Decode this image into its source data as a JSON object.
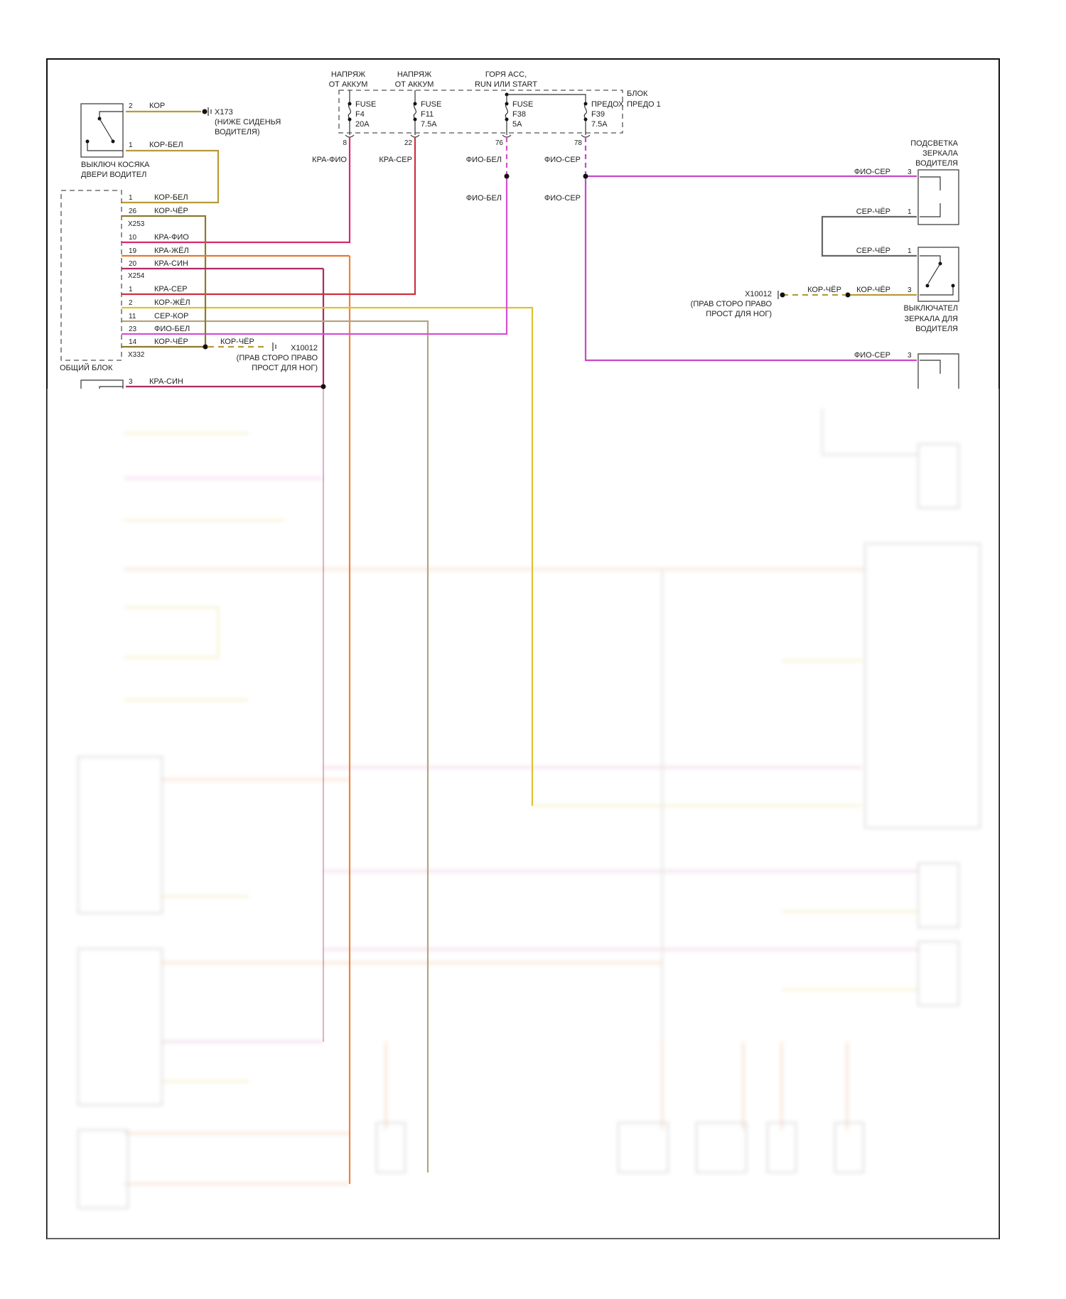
{
  "power_sources": [
    {
      "line1": "НАПРЯЖ",
      "line2": "ОТ АККУМ"
    },
    {
      "line1": "НАПРЯЖ",
      "line2": "ОТ АККУМ"
    },
    {
      "line1": "ГОРЯ ACC,",
      "line2": "RUN ИЛИ START"
    }
  ],
  "fuse_block": {
    "line1": "БЛОК",
    "line2": "ПРЕДО 1"
  },
  "fuses": [
    {
      "name": "FUSE",
      "id": "F4",
      "rating": "20A",
      "pin": "8",
      "wire": "КРА-ФИО"
    },
    {
      "name": "FUSE",
      "id": "F11",
      "rating": "7.5A",
      "pin": "22",
      "wire": "КРА-СЕР"
    },
    {
      "name": "FUSE",
      "id": "F38",
      "rating": "5A",
      "pin": "76",
      "wire": "ФИО-БЕЛ",
      "wire2": "ФИО-БЕЛ"
    },
    {
      "name": "ПРЕДОХ",
      "id": "F39",
      "rating": "7.5A",
      "pin": "78",
      "wire": "ФИО-СЕР",
      "wire2": "ФИО-СЕР"
    }
  ],
  "door_switch": {
    "line1": "ВЫКЛЮЧ КОСЯКА",
    "line2": "ДВЕРИ ВОДИТЕЛ",
    "pins": [
      {
        "pin": "2",
        "wire": "КОР"
      },
      {
        "pin": "1",
        "wire": "КОР-БЕЛ"
      }
    ]
  },
  "ground_x173": {
    "id": "X173",
    "line1": "(НИЖЕ СИДЕНЬЯ",
    "line2": "ВОДИТЕЛЯ)"
  },
  "body_module": {
    "label": "ОБЩИЙ БЛОК",
    "connectors": [
      "X253",
      "X254",
      "X332"
    ],
    "pins": [
      {
        "pin": "1",
        "wire": "КОР-БЕЛ"
      },
      {
        "pin": "26",
        "wire": "КОР-ЧЁР"
      },
      {
        "pin": "10",
        "wire": "КРА-ФИО"
      },
      {
        "pin": "19",
        "wire": "КРА-ЖЁЛ"
      },
      {
        "pin": "20",
        "wire": "КРА-СИН"
      },
      {
        "pin": "1",
        "wire": "КРА-СЕР"
      },
      {
        "pin": "2",
        "wire": "КОР-ЖЁЛ"
      },
      {
        "pin": "11",
        "wire": "СЕР-КОР"
      },
      {
        "pin": "23",
        "wire": "ФИО-БЕЛ"
      },
      {
        "pin": "14",
        "wire": "КОР-ЧЁР"
      }
    ]
  },
  "ground_left": {
    "wire": "КОР-ЧЁР",
    "id": "X10012",
    "line1": "(ПРАВ СТОРО ПРАВО",
    "line2": "ПРОСТ ДЛЯ НОГ)"
  },
  "lower_left_component": {
    "pin": "3",
    "wire": "КРА-СИН"
  },
  "mirror_light": {
    "line1": "ПОДСВЕТКА",
    "line2": "ЗЕРКАЛА",
    "line3": "ВОДИТЕЛЯ",
    "pins": [
      {
        "pin": "3",
        "wire": "ФИО-СЕР"
      },
      {
        "pin": "1",
        "wire": "СЕР-ЧЁР"
      }
    ]
  },
  "mirror_switch": {
    "line1": "ВЫКЛЮЧАТЕЛ",
    "line2": "ЗЕРКАЛА ДЛЯ",
    "line3": "ВОДИТЕЛЯ",
    "pins": [
      {
        "pin": "1",
        "wire": "СЕР-ЧЁР"
      },
      {
        "pin": "3",
        "wire": "КОР-ЧЁР"
      }
    ]
  },
  "ground_right": {
    "wire": "КОР-ЧЁР",
    "id": "X10012",
    "line1": "(ПРАВ СТОРО ПРАВО",
    "line2": "ПРОСТ ДЛЯ НОГ)"
  },
  "right_component_3": {
    "pin": "3",
    "wire": "ФИО-СЕР"
  },
  "colors": {
    "kor": "#b89a38",
    "kor_cher": "#8c7a2c",
    "kra_fio": "#d42c6c",
    "kra_zhel": "#e8782c",
    "kra_sin": "#a82c64",
    "kra_ser": "#cc3040",
    "kor_zhel": "#dcc234",
    "ser_kor": "#b4a482",
    "fio_bel": "#d54fd5",
    "fio_ser": "#c848c8",
    "ser_cher": "#666666"
  }
}
